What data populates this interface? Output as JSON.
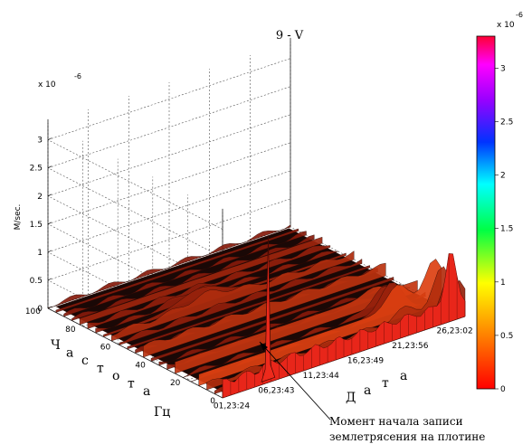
{
  "chart_data": {
    "type": "surface3d",
    "title": "9 - V",
    "zlabel": "M/sec.",
    "z_exponent": "x 10",
    "z_exponent_power": "-6",
    "z_ticks": [
      "0",
      "0.5",
      "1",
      "1.5",
      "2",
      "2.5",
      "3"
    ],
    "zlim": [
      0,
      3.3
    ],
    "freq_label_letters": [
      "Ч",
      "а",
      "с",
      "т",
      "о",
      "т",
      "а"
    ],
    "freq_unit": "Гц",
    "freq_ticks": [
      "0",
      "20",
      "40",
      "60",
      "80",
      "100"
    ],
    "date_label_letters": [
      "Д",
      "а",
      "т",
      "а"
    ],
    "date_ticks": [
      "01,23:24",
      "06,23:43",
      "11,23:44",
      "16,23:49",
      "21,23:56",
      "26,23:02"
    ],
    "colorbar": {
      "exponent": "x 10",
      "exponent_power": "-6",
      "ticks": [
        "0",
        "0.5",
        "1",
        "1.5",
        "2",
        "2.5",
        "3"
      ],
      "range": [
        0,
        3.3
      ]
    },
    "annotation_line1": "Момент начала записи",
    "annotation_line2": "землетрясения на плотине",
    "grid": true
  }
}
